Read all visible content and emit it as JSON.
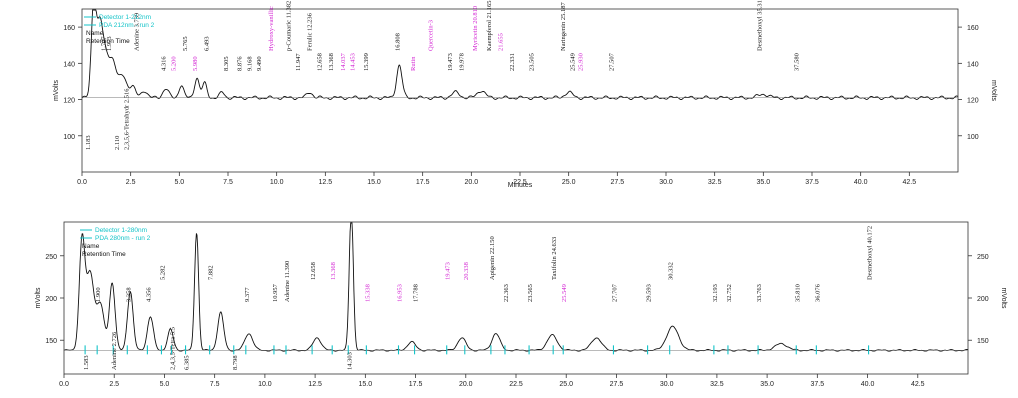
{
  "chart_data": [
    {
      "type": "line",
      "panel": "top",
      "ylabel": "mVolts",
      "xlabel": "Minutes",
      "ylim": [
        80,
        170
      ],
      "xlim": [
        0,
        45
      ],
      "y_ticks": [
        "100",
        "120",
        "140",
        "160"
      ],
      "x_ticks": [
        "0.0",
        "2.5",
        "5.0",
        "7.5",
        "10.0",
        "12.5",
        "15.0",
        "17.5",
        "20.0",
        "22.5",
        "25.0",
        "27.5",
        "30.0",
        "32.5",
        "35.0",
        "37.5",
        "40.0",
        "42.5"
      ],
      "legend": [
        {
          "text": "Detector 1-212nm",
          "color": "#13c3c8"
        },
        {
          "text": "PDA 212nm - run 2",
          "color": "#13c3c8"
        },
        {
          "text": "Name",
          "color": "#111111"
        },
        {
          "text": "Retention Time",
          "color": "#111111"
        }
      ],
      "series": [
        {
          "color": "#111111",
          "baseline": 121,
          "peaks": [
            {
              "x": 0.6,
              "y": 52,
              "w": 0.12
            },
            {
              "x": 0.9,
              "y": 35,
              "w": 0.15
            },
            {
              "x": 1.2,
              "y": 22,
              "w": 0.2
            },
            {
              "x": 1.6,
              "y": 18,
              "w": 0.18
            },
            {
              "x": 2.1,
              "y": 12,
              "w": 0.2
            },
            {
              "x": 2.6,
              "y": 6,
              "w": 0.15
            },
            {
              "x": 3.2,
              "y": 4,
              "w": 0.15
            },
            {
              "x": 4.3,
              "y": 5,
              "w": 0.15
            },
            {
              "x": 5.1,
              "y": 7,
              "w": 0.12
            },
            {
              "x": 5.9,
              "y": 11,
              "w": 0.12
            },
            {
              "x": 6.3,
              "y": 8,
              "w": 0.12
            },
            {
              "x": 7.2,
              "y": 3,
              "w": 0.12
            },
            {
              "x": 11.7,
              "y": 3,
              "w": 0.15
            },
            {
              "x": 16.3,
              "y": 18,
              "w": 0.14
            },
            {
              "x": 19.2,
              "y": 3,
              "w": 0.2
            },
            {
              "x": 20.5,
              "y": 4,
              "w": 0.2
            },
            {
              "x": 25.0,
              "y": 3,
              "w": 0.2
            },
            {
              "x": 35.0,
              "y": 2,
              "w": 0.25
            }
          ]
        }
      ],
      "annotations": [
        {
          "x": 0.4,
          "text": "1.183",
          "color": "black",
          "level": "low"
        },
        {
          "x": 1.2,
          "text": "1.707",
          "color": "black",
          "level": "high"
        },
        {
          "x": 1.5,
          "text": "1.973",
          "color": "black",
          "level": "high"
        },
        {
          "x": 1.9,
          "text": "2.110",
          "color": "black",
          "level": "low"
        },
        {
          "x": 2.4,
          "text": "2,3,5,6-Tetrahydr 2.516",
          "color": "black",
          "level": "low"
        },
        {
          "x": 2.9,
          "text": "Adenine 3.739",
          "color": "black",
          "level": "high"
        },
        {
          "x": 4.3,
          "text": "4.316",
          "color": "black",
          "level": "mid"
        },
        {
          "x": 4.8,
          "text": "5.200",
          "color": "magenta",
          "level": "mid"
        },
        {
          "x": 5.4,
          "text": "5.765",
          "color": "black",
          "level": "high"
        },
        {
          "x": 5.9,
          "text": "5.980",
          "color": "magenta",
          "level": "mid"
        },
        {
          "x": 6.5,
          "text": "6.493",
          "color": "black",
          "level": "high"
        },
        {
          "x": 7.5,
          "text": "8.305",
          "color": "black",
          "level": "mid"
        },
        {
          "x": 8.2,
          "text": "8.876",
          "color": "black",
          "level": "mid"
        },
        {
          "x": 8.7,
          "text": "9.168",
          "color": "black",
          "level": "mid"
        },
        {
          "x": 9.2,
          "text": "9.490",
          "color": "black",
          "level": "mid"
        },
        {
          "x": 9.8,
          "text": "Hydroxy-vanillic",
          "color": "magenta",
          "level": "high"
        },
        {
          "x": 10.7,
          "text": "p-Coumaric 11.382",
          "color": "black",
          "level": "high"
        },
        {
          "x": 11.2,
          "text": "11.947",
          "color": "black",
          "level": "mid"
        },
        {
          "x": 11.8,
          "text": "Ferulic 12.236",
          "color": "black",
          "level": "high"
        },
        {
          "x": 12.3,
          "text": "12.658",
          "color": "black",
          "level": "mid"
        },
        {
          "x": 12.9,
          "text": "13.368",
          "color": "black",
          "level": "mid"
        },
        {
          "x": 13.5,
          "text": "14.037",
          "color": "magenta",
          "level": "mid"
        },
        {
          "x": 14.0,
          "text": "14.453",
          "color": "magenta",
          "level": "mid"
        },
        {
          "x": 14.7,
          "text": "15.399",
          "color": "black",
          "level": "mid"
        },
        {
          "x": 16.3,
          "text": "16.808",
          "color": "black",
          "level": "high"
        },
        {
          "x": 17.1,
          "text": "Rutin",
          "color": "magenta",
          "level": "mid"
        },
        {
          "x": 18.0,
          "text": "Quercetin-3",
          "color": "magenta",
          "level": "high"
        },
        {
          "x": 19.0,
          "text": "19.473",
          "color": "black",
          "level": "mid"
        },
        {
          "x": 19.6,
          "text": "19.978",
          "color": "black",
          "level": "mid"
        },
        {
          "x": 20.3,
          "text": "Myricetin 20.810",
          "color": "magenta",
          "level": "high"
        },
        {
          "x": 21.0,
          "text": "Kaempferol 21.165",
          "color": "black",
          "level": "high"
        },
        {
          "x": 21.6,
          "text": "21.655",
          "color": "magenta",
          "level": "high"
        },
        {
          "x": 22.2,
          "text": "22.331",
          "color": "black",
          "level": "mid"
        },
        {
          "x": 23.2,
          "text": "23.505",
          "color": "black",
          "level": "mid"
        },
        {
          "x": 24.8,
          "text": "Naringenin 25.187",
          "color": "black",
          "level": "high"
        },
        {
          "x": 25.3,
          "text": "25.549",
          "color": "black",
          "level": "mid"
        },
        {
          "x": 25.7,
          "text": "25.930",
          "color": "magenta",
          "level": "mid"
        },
        {
          "x": 27.3,
          "text": "27.507",
          "color": "black",
          "level": "mid"
        },
        {
          "x": 34.9,
          "text": "Desmethoxyl 35.313",
          "color": "black",
          "level": "high"
        },
        {
          "x": 36.8,
          "text": "37.580",
          "color": "black",
          "level": "mid"
        }
      ]
    },
    {
      "type": "line",
      "panel": "bottom",
      "ylabel": "mVolts",
      "ylim": [
        110,
        290
      ],
      "xlim": [
        0,
        45
      ],
      "y_ticks": [
        "150",
        "200",
        "250"
      ],
      "x_ticks": [
        "0.0",
        "2.5",
        "5.0",
        "7.5",
        "10.0",
        "12.5",
        "15.0",
        "17.5",
        "20.0",
        "22.5",
        "25.0",
        "27.5",
        "30.0",
        "32.5",
        "35.0",
        "37.5",
        "40.0",
        "42.5"
      ],
      "legend": [
        {
          "text": "Detector 1-280nm",
          "color": "#13c3c8"
        },
        {
          "text": "PDA 280nm - run 2",
          "color": "#13c3c8"
        },
        {
          "text": "Name",
          "color": "#111111"
        },
        {
          "text": "Retention Time",
          "color": "#111111"
        }
      ],
      "series": [
        {
          "color": "#111111",
          "baseline": 138,
          "peaks": [
            {
              "x": 0.9,
              "y": 130,
              "w": 0.14
            },
            {
              "x": 1.3,
              "y": 90,
              "w": 0.18
            },
            {
              "x": 1.8,
              "y": 55,
              "w": 0.2
            },
            {
              "x": 2.4,
              "y": 80,
              "w": 0.14
            },
            {
              "x": 3.3,
              "y": 70,
              "w": 0.14
            },
            {
              "x": 4.3,
              "y": 40,
              "w": 0.15
            },
            {
              "x": 5.3,
              "y": 25,
              "w": 0.14
            },
            {
              "x": 6.6,
              "y": 140,
              "w": 0.1
            },
            {
              "x": 7.8,
              "y": 45,
              "w": 0.15
            },
            {
              "x": 9.2,
              "y": 20,
              "w": 0.2
            },
            {
              "x": 12.6,
              "y": 15,
              "w": 0.2
            },
            {
              "x": 14.3,
              "y": 170,
              "w": 0.1
            },
            {
              "x": 17.3,
              "y": 10,
              "w": 0.2
            },
            {
              "x": 19.8,
              "y": 15,
              "w": 0.2
            },
            {
              "x": 21.5,
              "y": 20,
              "w": 0.2
            },
            {
              "x": 24.3,
              "y": 18,
              "w": 0.25
            },
            {
              "x": 26.5,
              "y": 15,
              "w": 0.25
            },
            {
              "x": 30.3,
              "y": 28,
              "w": 0.3
            },
            {
              "x": 35.7,
              "y": 8,
              "w": 0.3
            }
          ]
        }
      ],
      "annotations": [
        {
          "x": 1.2,
          "text": "1.583",
          "color": "black",
          "level": "low"
        },
        {
          "x": 1.8,
          "text": "1.900",
          "color": "black",
          "level": "mid"
        },
        {
          "x": 2.6,
          "text": "Adenine 2.726",
          "color": "black",
          "level": "low"
        },
        {
          "x": 3.3,
          "text": "3.358",
          "color": "black",
          "level": "mid"
        },
        {
          "x": 4.3,
          "text": "4.356",
          "color": "black",
          "level": "mid"
        },
        {
          "x": 5.0,
          "text": "5.282",
          "color": "black",
          "level": "high"
        },
        {
          "x": 5.5,
          "text": "2,4,3,5-Tetra 5.5",
          "color": "black",
          "level": "low"
        },
        {
          "x": 6.2,
          "text": "6.385",
          "color": "black",
          "level": "low"
        },
        {
          "x": 7.4,
          "text": "7.882",
          "color": "black",
          "level": "high"
        },
        {
          "x": 8.6,
          "text": "8.798",
          "color": "black",
          "level": "low"
        },
        {
          "x": 9.2,
          "text": "9.377",
          "color": "black",
          "level": "mid"
        },
        {
          "x": 10.6,
          "text": "10.957",
          "color": "black",
          "level": "mid"
        },
        {
          "x": 11.2,
          "text": "Adenine 11.390",
          "color": "black",
          "level": "mid"
        },
        {
          "x": 12.5,
          "text": "12.658",
          "color": "black",
          "level": "high"
        },
        {
          "x": 13.5,
          "text": "13.368",
          "color": "magenta",
          "level": "high"
        },
        {
          "x": 14.3,
          "text": "14.303",
          "color": "black",
          "level": "low"
        },
        {
          "x": 15.2,
          "text": "15.338",
          "color": "magenta",
          "level": "mid"
        },
        {
          "x": 16.8,
          "text": "16.953",
          "color": "magenta",
          "level": "mid"
        },
        {
          "x": 17.6,
          "text": "17.788",
          "color": "black",
          "level": "mid"
        },
        {
          "x": 19.2,
          "text": "19.473",
          "color": "magenta",
          "level": "high"
        },
        {
          "x": 20.1,
          "text": "20.338",
          "color": "magenta",
          "level": "high"
        },
        {
          "x": 21.4,
          "text": "Apigenin 22.150",
          "color": "black",
          "level": "high"
        },
        {
          "x": 22.1,
          "text": "22.363",
          "color": "black",
          "level": "mid"
        },
        {
          "x": 23.3,
          "text": "23.565",
          "color": "black",
          "level": "mid"
        },
        {
          "x": 24.5,
          "text": "Taxifolin 24.633",
          "color": "black",
          "level": "high"
        },
        {
          "x": 25.0,
          "text": "25.549",
          "color": "magenta",
          "level": "mid"
        },
        {
          "x": 27.5,
          "text": "27.707",
          "color": "black",
          "level": "mid"
        },
        {
          "x": 29.2,
          "text": "29.593",
          "color": "black",
          "level": "mid"
        },
        {
          "x": 30.3,
          "text": "30.332",
          "color": "black",
          "level": "high"
        },
        {
          "x": 32.5,
          "text": "32.193",
          "color": "black",
          "level": "mid"
        },
        {
          "x": 33.2,
          "text": "32.752",
          "color": "black",
          "level": "mid"
        },
        {
          "x": 34.7,
          "text": "33.763",
          "color": "black",
          "level": "mid"
        },
        {
          "x": 36.6,
          "text": "35.810",
          "color": "black",
          "level": "mid"
        },
        {
          "x": 37.6,
          "text": "36.076",
          "color": "black",
          "level": "mid"
        },
        {
          "x": 40.2,
          "text": "Desmethoxyl 40.172",
          "color": "black",
          "level": "high"
        }
      ]
    }
  ]
}
